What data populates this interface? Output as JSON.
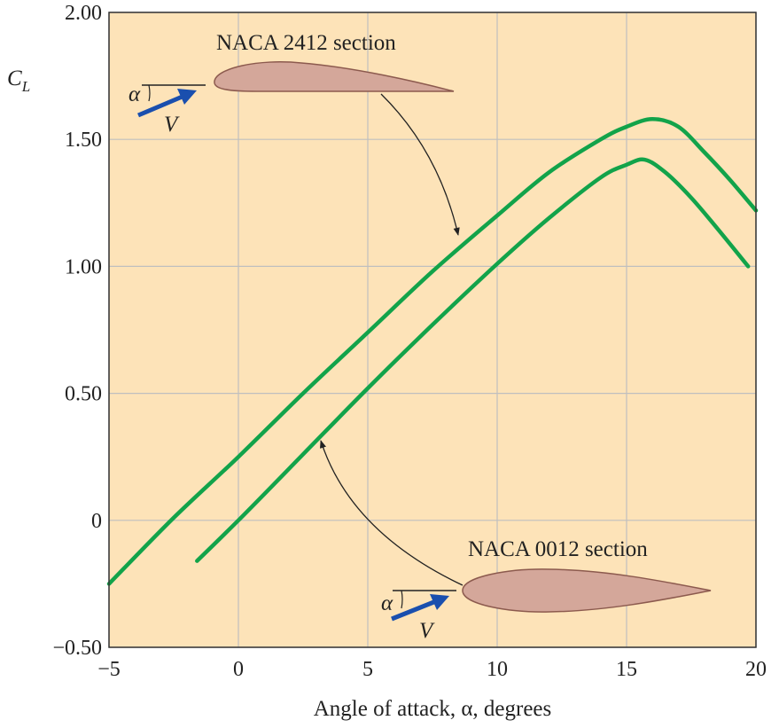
{
  "chart_data": {
    "type": "line",
    "title": "",
    "xlabel": "Angle of attack, α, degrees",
    "ylabel_main": "C",
    "ylabel_sub": "L",
    "xlim": [
      -5,
      20
    ],
    "ylim": [
      -0.5,
      2.0
    ],
    "x_ticks": [
      -5,
      0,
      5,
      10,
      15,
      20
    ],
    "x_tick_labels": [
      "−5",
      "0",
      "5",
      "10",
      "15",
      "20"
    ],
    "y_ticks": [
      -0.5,
      0,
      0.5,
      1.0,
      1.5,
      2.0
    ],
    "y_tick_labels": [
      "−0.50",
      "0",
      "0.50",
      "1.00",
      "1.50",
      "2.00"
    ],
    "grid": true,
    "series": [
      {
        "name": "NACA 2412 section",
        "x": [
          -5,
          -2.5,
          0,
          2.5,
          5,
          7.5,
          10,
          12,
          14,
          15,
          16,
          17,
          18,
          19,
          20
        ],
        "y": [
          -0.25,
          0.01,
          0.25,
          0.5,
          0.74,
          0.98,
          1.2,
          1.37,
          1.5,
          1.55,
          1.58,
          1.55,
          1.45,
          1.34,
          1.22
        ]
      },
      {
        "name": "NACA 0012 section",
        "x": [
          -1.6,
          0,
          2.5,
          5,
          7.5,
          10,
          12,
          14,
          15,
          15.7,
          16.5,
          17.5,
          18.5,
          19.7
        ],
        "y": [
          -0.16,
          0.0,
          0.26,
          0.52,
          0.77,
          1.01,
          1.19,
          1.35,
          1.4,
          1.42,
          1.37,
          1.27,
          1.15,
          1.0
        ]
      }
    ],
    "annotations": {
      "upper_label": "NACA 2412 section",
      "lower_label": "NACA 0012 section",
      "alpha_symbol": "α",
      "velocity_symbol": "V"
    },
    "colors": {
      "background": "#fde3b8",
      "grid": "#bfbfbf",
      "curve": "#12a34a",
      "airfoil_fill": "#d4a79a",
      "airfoil_stroke": "#8c5a4e",
      "velocity_arrow": "#1a4fae"
    }
  }
}
